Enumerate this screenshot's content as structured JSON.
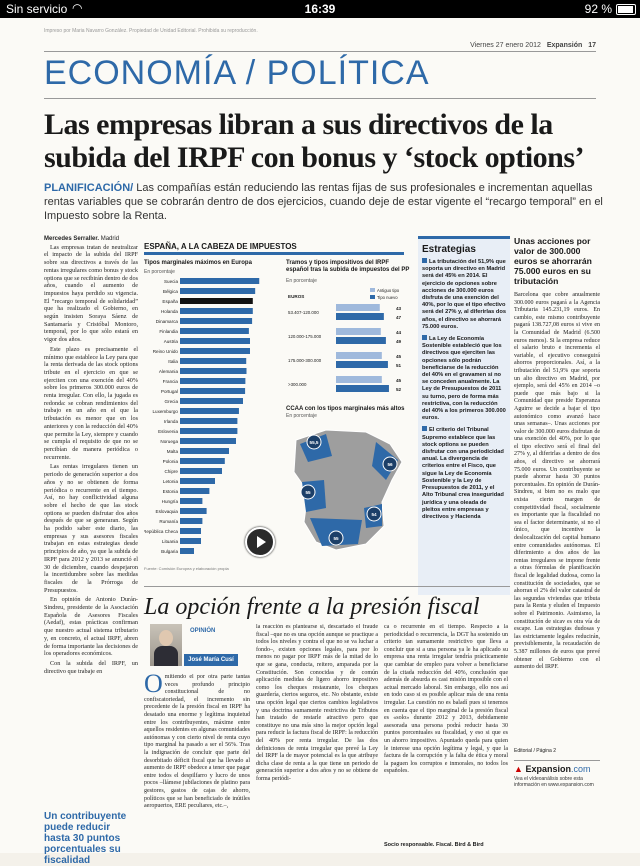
{
  "status_bar": {
    "carrier": "Sin servicio",
    "time": "16:39",
    "battery": "92 %",
    "battery_level": 0.92
  },
  "page_header": {
    "fine_print": "Impreso por Maria Navarro González. Propiedad de Unidad Editorial. Prohibida su reproducción.",
    "date": "Viernes 27 enero 2012",
    "paper": "Expansión",
    "page_number": "17"
  },
  "section": "ECONOMÍA / POLÍTICA",
  "headline": "Las empresas libran a sus directivos de la subida del IRPF con bonus y ‘stock options’",
  "deck": {
    "kicker": "PLANIFICACIÓN/",
    "text": " Las compañías están reduciendo las rentas fijas de sus profesionales e incrementan aquellas rentas variables que se cobrarán dentro de dos ejercicios, cuando deje de estar vigente el “recargo temporal” en el Impuesto sobre la Renta."
  },
  "byline": {
    "name": "Mercedes Serraller.",
    "place": " Madrid"
  },
  "col1": {
    "p1": "Las empresas tratan de neutralizar el impacto de la subida del IRPF sobre sus directivos a través de las rentas irregulares como bonus y stock options que se recibirán dentro de dos años, cuando el aumento de impuestos haya perdido su vigencia. El “recargo temporal de solidaridad” que ha realizado el Gobierno, en según insisten Soraya Sáenz de Santamaría y Cristóbal Montoro, temporal, por lo que sólo estará en vigor dos años.",
    "p2": "Este plazo es precisamente el mínimo que establece la Ley para que la renta derivada de las stock options tribute en el ejercicio en que se ejerciten con una exención del 40% sobre los primeros 300.000 euros de renta irregular. Con ello, la jugada es redonda: se cobran rendimientos del trabajo en un año en el que la tributación es menor que en los anteriores y con la reducción del 40% que permite la Ley, siempre y cuando se cumpla el requisito de que no se percibían de manera periódica o recurrente.",
    "p3": "Las rentas irregulares tienen un periodo de generación superior a dos años y no se obtienen de forma periódica o recurrente en el tiempo. Así, no hay conflictividad alguna sobre el hecho de que las stock options se pueden disfrutar dos años después de que se generaran. Según ha podido saber este diario, las empresas y sus asesores fiscales trabajan en estas estrategias desde principios de año, ya que la subida de IRPF para 2012 y 2013 se anunció el 30 de diciembre, cuando despejaron la incertidumbre sobre las medidas fiscales de la Prórroga de Presupuestos.",
    "p4": "En opinión de Antonio Durán-Sindreu, presidente de la Asociación Española de Asesores Fiscales (Aedaf), estas prácticas confirman que nuestro actual sistema tributario y, en concreto, el actual IRPF, abren de forma importante las decisiones de los operadores económicos.",
    "p5": "Con la subida del IRPF, un directivo que trabaje en",
    "pull": "Un contribuyente puede reducir hasta 30 puntos porcentuales su fiscalidad"
  },
  "graphic": {
    "title": "ESPAÑA, A LA CABEZA DE IMPUESTOS",
    "source": "Fuente: Comisión Europea y elaboración propia"
  },
  "chart_data": [
    {
      "type": "bar",
      "title": "Tipos marginales máximos en Europa",
      "ylabel": "En porcentaje",
      "xlim": [
        0,
        60
      ],
      "highlight": "España",
      "categories": [
        "Suecia",
        "Bélgica",
        "España",
        "Holanda",
        "Dinamarca",
        "Finlandia",
        "Austria",
        "Reino Unido",
        "Italia",
        "Alemania",
        "Francia",
        "Portugal",
        "Grecia",
        "Luxemburgo",
        "Irlanda",
        "Eslovenia",
        "Noruega",
        "Malta",
        "Polonia",
        "Chipre",
        "Letonia",
        "Estonia",
        "Hungría",
        "Eslovaquia",
        "Rumanía",
        "República Checa",
        "Lituania",
        "Bulgaria"
      ],
      "values": [
        56.6,
        53.7,
        52,
        52,
        51.5,
        49.2,
        50,
        50,
        47.3,
        47.5,
        46.7,
        46.5,
        45,
        42.1,
        41,
        41,
        40,
        35,
        32,
        30,
        25,
        21,
        16,
        19,
        16,
        15,
        15,
        10
      ]
    },
    {
      "type": "bar",
      "title": "Tramos y tipos impositivos del IRPF español tras la subida de impuestos del PP",
      "ylabel": "En porcentaje",
      "xlabel": "EUROS",
      "xlim": [
        0,
        55
      ],
      "categories": [
        "53.407-120.000",
        "120.000-175.000",
        "175.000-300.000",
        ">300.000"
      ],
      "series": [
        {
          "name": "Antiguo tipo",
          "values": [
            43,
            44,
            45,
            45
          ]
        },
        {
          "name": "Tipo nuevo",
          "values": [
            47,
            49,
            51,
            52
          ]
        }
      ],
      "legend": "top-right",
      "colors": {
        "old": "#9fb9dc",
        "new": "#2e69a8"
      }
    },
    {
      "type": "map",
      "title": "CCAA con los tipos marginales más altos",
      "ylabel": "En porcentaje",
      "values": [
        {
          "label": "55,5",
          "region": "Asturias"
        },
        {
          "label": "56",
          "region": "Cataluña"
        },
        {
          "label": "55",
          "region": "Extremadura"
        },
        {
          "label": "54",
          "region": "Murcia"
        },
        {
          "label": "55",
          "region": "Andalucía"
        }
      ]
    }
  ],
  "strategies": {
    "title": "Estrategias",
    "items": [
      "La tributación del 51,9% que soporta un directivo en Madrid será del 45% en 2014. El ejercicio de opciones sobre acciones de 300.000 euros disfruta de una exención del 40%, por lo que el tipo efectivo será del 27% y, al diferirlas dos años, el directivo se ahorrará 75.000 euros.",
      "La Ley de Economía Sostenible estableció que los directivos que ejerciten las opciones sólo podrán beneficiarse de la reducción del 40% en el gravamen si no se conceden anualmente. La Ley de Presupuestos de 2011 su turno, pero de forma más restrictiva, con la reducción del 40% a los primeros 300.000 euros.",
      "El criterio del Tribunal Supremo establece que las stock options se pueden disfrutar con una periodicidad anual. La divergencia de criterios entre el Fisco, que sigue la Ley de Economía Sostenible y la Ley de Presupuestos de 2011, y el Alto Tribunal crea inseguridad jurídica y una oleada de pleitos entre empresas y directivos y Hacienda"
    ]
  },
  "right_col": {
    "pull": "Unas acciones por valor de 300.000 euros se ahorrarán 75.000 euros en su tributación",
    "text": "Barcelona que cobre anualmente 300.000 euros pagará a la Agencia Tributaria 145.231,19 euros. En cambio, este mismo contribuyente pagará 138.727,08 euros si vive en la Comunidad de Madrid (6.500 euros menos). Si la empresa reduce el salario bruto e incrementa el variable, el ejecutivo conseguirá ahorros proporcionales. Así, a la tributación del 51,9% que soporta un alto directivo en Madrid, por ejemplo, será del 45% en 2014 –o puede que más bajo si la Comunidad que preside Esperanza Aguirre se decide a bajar el tipo autonómico como avanzó hace unas semanas–. Unas acciones por valor de 300.000 euros disfrutan de una exención del 40%, por lo que el tipo efectivo será el final del 27% y, al diferirlas a dentro de dos años, el directivo se ahorrará 75.000 euros. Un contribuyente se puede ahorrar hasta 30 puntos porcentuales. En opinión de Durán-Sindreu, si bien no es malo que exista cierto margen de competitividad fiscal, socialmente es importante que la fiscalidad no sea el factor determinante, si no el único, que incentive la deslocalización del capital humano entre comunidades autónomas. El diferimiento a dos años de las rentas irregulares se impone frente a otras fórmulas de planificación fiscal de legalidad dudosa, como la constitución de sociedades, que se ahorran el 2% del valor catastral de las segundas viviendas que tributa para la Renta y eluden el Impuesto sobre el Patrimonio. Asimismo, la constitución de sicav es otra vía de escape. Las estrategias dudosas y las estrictamente legales reducirán, previsiblemente, la recaudación de 5.387 millones de euros que prevé obtener el Gobierno con el aumento del IRPF."
  },
  "opinion": {
    "title": "La opción frente a la presión fiscal",
    "label": "OPINIÓN",
    "author": "José María Cusí",
    "col_a": "mitiendo el por otra parte tantas veces profundo principio constitucional de no confiscatoriedad, el incremento sin precedente de la presión fiscal en IRPF ha desatado una enorme y legítima inquietud entre los contribuyentes, máxime entre aquellos residentes en algunas comunidades autónomas y con cierto nivel de renta cuyo tipo marginal ha pasado a ser el 56%. Tras la indignación de concluir que parte del desorbitado déficit fiscal que ha llevado al aumento de IRPF obedece a tener que pagar entre todos el despilfarro y lucro de unos pocos –llámese jubilaciones de platino para gestores, gastos de cajas de ahorro, políticos que se han beneficiado de inútiles aeropuertos, ERE peculiares, etc.–,",
    "col_b": "la reacción es plantearse si, descartado el fraude fiscal –que no es una opción aunque se practique a todos los niveles y contra el que no se va luchar a fondo–, existen opciones legales, para por lo menos no pagar por IRPF más de la mitad de lo que se gana, conducta, reitero, amparada por la Constitución. Son conocidas y de común aplicación medidas de ligero ahorro impositivo como los cheques restaurante, los cheques guardería, ciertos seguros, etc. No obstante, existe una opción legal que ciertos cambios legislativos y una doctrina sumamente restrictiva de Tributos han tratado de restarle atractivo pero que constituye no una más sino la mejor opción legal para reducir la factura fiscal de IRPF: la reducción del 40% por renta irregular. De las dos definiciones de renta irregular que prevé la Ley del IRPF la de mayor potencial es la que atribuye dicha clase de renta a la que tiene un periodo de generación superior a dos años y no se obtiene de forma periódi-",
    "col_c": "ca o recurrente en el tiempo. Respecto a la periodicidad o recurrencia, la DGT ha sostenido un criterio tan sumamente restrictivo que lleva a concluir que si a una persona ya le ha aplicado su empresa una renta irregular tendría prácticamente que cambiar de empleo para volver a beneficiarse de la citada reducción del 40%, conclusión que además de absurda es casi misión imposible con el actual mercado laboral. Sin embargo, ello nos así en todo caso si es posible aplicar más de una renta irregular. La cuestión no es baladí pues si tenemos en cuenta que el tipo marginal de la presión fiscal es «solo» durante 2012 y 2013, debidamente asesorada una persona podrá reducir hasta 30 puntos porcentuales su fiscalidad, y eso si que es un ahorro impositivo. Apuntado queda para quien le interese una opción legítima y legal, y que la factura de la corrupción y la falta de ética y moral la paguen los corruptos e inmorales, no todos los españoles.",
    "sign": "Socio responsable. Fiscal. Bird & Bird"
  },
  "editorial": "Editorial / Página 2",
  "expansion_box": {
    "logo_a": "Expansion",
    "logo_b": ".com",
    "text": "Vea el vídeoanálisis sobre esta información en www.expansion.com"
  }
}
